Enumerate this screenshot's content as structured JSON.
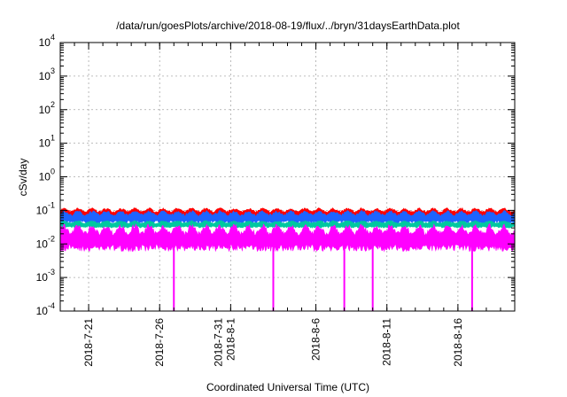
{
  "chart_data": {
    "type": "line",
    "title": "/data/run/goesPlots/archive/2018-08-19/flux/../bryn/31daysEarthData.plot",
    "xlabel": "Coordinated Universal Time (UTC)",
    "ylabel": "cSv/day",
    "yscale": "log",
    "ylim": [
      0.0001,
      10000
    ],
    "xlim": [
      "2018-07-19",
      "2018-08-20"
    ],
    "grid": true,
    "y_ticks": [
      {
        "base": "10",
        "exp": "-4"
      },
      {
        "base": "10",
        "exp": "-3"
      },
      {
        "base": "10",
        "exp": "-2"
      },
      {
        "base": "10",
        "exp": "-1"
      },
      {
        "base": "10",
        "exp": "0"
      },
      {
        "base": "10",
        "exp": "1"
      },
      {
        "base": "10",
        "exp": "2"
      },
      {
        "base": "10",
        "exp": "3"
      },
      {
        "base": "10",
        "exp": "4"
      }
    ],
    "x_ticks": [
      {
        "date": "2018-07-21",
        "label": [
          "2018-7-21"
        ]
      },
      {
        "date": "2018-07-26",
        "label": [
          "2018-7-26"
        ]
      },
      {
        "date": "2018-07-31",
        "label": [
          "2018-7-31",
          "2018-8-1"
        ]
      },
      {
        "date": "2018-08-06",
        "label": [
          "2018-8-6"
        ]
      },
      {
        "date": "2018-08-11",
        "label": [
          "2018-8-11"
        ]
      },
      {
        "date": "2018-08-16",
        "label": [
          "2018-8-16"
        ]
      }
    ],
    "series": [
      {
        "color": "#ff0000",
        "band": [
          0.055,
          0.12
        ]
      },
      {
        "color": "#1e64ff",
        "band": [
          0.04,
          0.1
        ]
      },
      {
        "color": "#00c8a0",
        "band": [
          0.03,
          0.05
        ]
      },
      {
        "color": "#ff00ff",
        "band": [
          0.006,
          0.04
        ]
      }
    ],
    "dropouts": [
      {
        "date": "2018-07-27",
        "value": 0.0001
      },
      {
        "date": "2018-08-03",
        "value": 0.0001
      },
      {
        "date": "2018-08-08",
        "value": 0.0001
      },
      {
        "date": "2018-08-10",
        "value": 0.0001
      },
      {
        "date": "2018-08-17",
        "value": 0.0001
      }
    ]
  }
}
